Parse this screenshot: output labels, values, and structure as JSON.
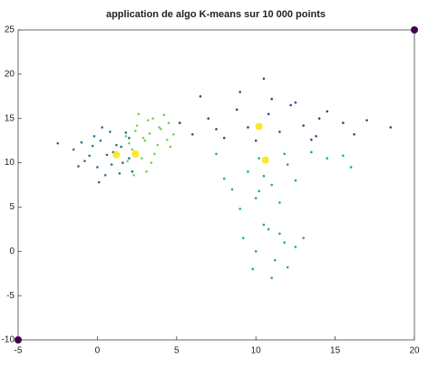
{
  "chart_data": {
    "type": "scatter",
    "title": "application de algo K-means sur 10 000 points",
    "xlim": [
      -5,
      20
    ],
    "ylim": [
      -10,
      25
    ],
    "xticks": [
      -5,
      0,
      5,
      10,
      15,
      20
    ],
    "yticks": [
      -10,
      -5,
      0,
      5,
      10,
      15,
      20,
      25
    ],
    "series": [
      {
        "color": "#26718e",
        "x": [
          -1.5,
          -0.8,
          0.2,
          0.9,
          1.5,
          2.0,
          -0.2,
          0.5,
          1.2,
          -1.0,
          0.0,
          1.8,
          0.6,
          -0.5,
          1.0,
          2.2,
          -2.5,
          0.3,
          1.4,
          -0.3,
          0.8,
          -1.2,
          1.6,
          0.1,
          2.0
        ],
        "y": [
          11.5,
          10.2,
          12.5,
          9.8,
          11.8,
          10.5,
          13.0,
          8.6,
          12.0,
          12.3,
          9.5,
          13.4,
          10.9,
          10.8,
          11.2,
          9.0,
          12.2,
          14.0,
          8.8,
          11.9,
          13.5,
          9.6,
          10.0,
          7.8,
          12.8
        ]
      },
      {
        "color": "#7ad151",
        "x": [
          1.8,
          2.5,
          3.0,
          3.5,
          4.0,
          4.5,
          2.2,
          2.8,
          3.3,
          3.8,
          4.2,
          4.8,
          2.0,
          3.1,
          3.6,
          2.6,
          4.4,
          3.9,
          2.3,
          3.2,
          1.9,
          4.6,
          2.9,
          3.4,
          2.4
        ],
        "y": [
          13.0,
          14.2,
          12.5,
          15.0,
          13.8,
          14.5,
          11.5,
          10.5,
          13.3,
          12.0,
          15.4,
          13.2,
          12.2,
          9.0,
          11.0,
          15.5,
          12.6,
          14.0,
          8.6,
          14.8,
          10.2,
          11.8,
          12.8,
          10.0,
          13.6
        ]
      },
      {
        "color": "#433e85",
        "x": [
          5.2,
          6.0,
          7.0,
          8.0,
          8.8,
          9.5,
          10.0,
          10.8,
          11.5,
          12.2,
          13.0,
          13.8,
          14.5,
          15.5,
          16.2,
          17.0,
          6.5,
          9.0,
          11.0,
          12.5,
          14.0,
          7.5,
          10.5,
          13.5,
          18.5
        ],
        "y": [
          14.5,
          13.2,
          15.0,
          12.8,
          16.0,
          14.0,
          12.5,
          15.5,
          13.5,
          16.5,
          14.2,
          13.0,
          15.8,
          14.5,
          13.2,
          14.8,
          17.5,
          18.0,
          17.2,
          16.8,
          15.0,
          13.8,
          19.5,
          12.6,
          14.0
        ]
      },
      {
        "color": "#22a884",
        "x": [
          8.5,
          9.5,
          10.0,
          10.5,
          11.0,
          11.5,
          12.0,
          9.0,
          10.2,
          11.8,
          12.5,
          13.5,
          14.5,
          15.5,
          16.0,
          7.5,
          8.0,
          9.2,
          10.0,
          10.8,
          11.2,
          11.8,
          12.5,
          9.8,
          11.0,
          10.5,
          12.0,
          11.5,
          13.0,
          10.2
        ],
        "y": [
          7.0,
          9.0,
          6.0,
          8.5,
          7.5,
          5.5,
          9.8,
          4.8,
          10.5,
          11.0,
          8.0,
          11.2,
          10.5,
          10.8,
          9.5,
          11.0,
          8.2,
          1.5,
          0.0,
          2.5,
          -1.0,
          1.0,
          0.5,
          -2.0,
          -3.0,
          3.0,
          -1.8,
          2.0,
          1.5,
          6.8
        ]
      },
      {
        "color": "#fde725",
        "size": 4,
        "x": [
          1.2,
          2.4,
          10.2,
          10.6
        ],
        "y": [
          10.9,
          11.0,
          14.1,
          10.3
        ]
      },
      {
        "color": "#440154",
        "size": 4,
        "x": [
          -5,
          20
        ],
        "y": [
          -10,
          25
        ]
      }
    ]
  }
}
